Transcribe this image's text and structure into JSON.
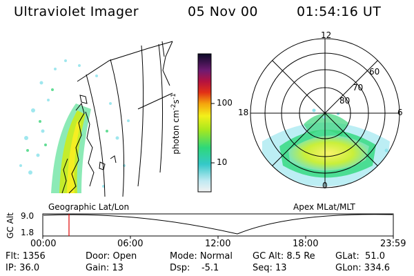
{
  "header": {
    "instrument": "Ultraviolet Imager",
    "date": "05 Nov 00",
    "time": "01:54:16 UT"
  },
  "colorbar": {
    "unit": "photon cm-2s-1",
    "ticks": [
      "100",
      "10"
    ],
    "scale": "log"
  },
  "left_panel": {
    "caption": "Geographic Lat/Lon"
  },
  "right_panel": {
    "caption": "Apex MLat/MLT",
    "mlt_labels": [
      "12",
      "18",
      "6",
      "0"
    ],
    "lat_labels": [
      "60",
      "70",
      "80"
    ]
  },
  "altitude_plot": {
    "ylabel": "GC Alt",
    "yticks": [
      "9.0",
      "1.8"
    ],
    "xticks": [
      "00:00",
      "06:00",
      "12:00",
      "18:00",
      "23:59"
    ],
    "marker_time": "01:54"
  },
  "status": {
    "flt": "Flt: 1356",
    "ip": "IP: 36.0",
    "door": "Door: Open",
    "gain": "Gain: 13",
    "mode": "Mode: Normal",
    "dsp": "Dsp:    -5.1",
    "gc_alt": "GC Alt: 8.5 Re",
    "seq": "Seq: 13",
    "glat": "GLat:  51.0",
    "glon": "GLon: 334.6"
  }
}
